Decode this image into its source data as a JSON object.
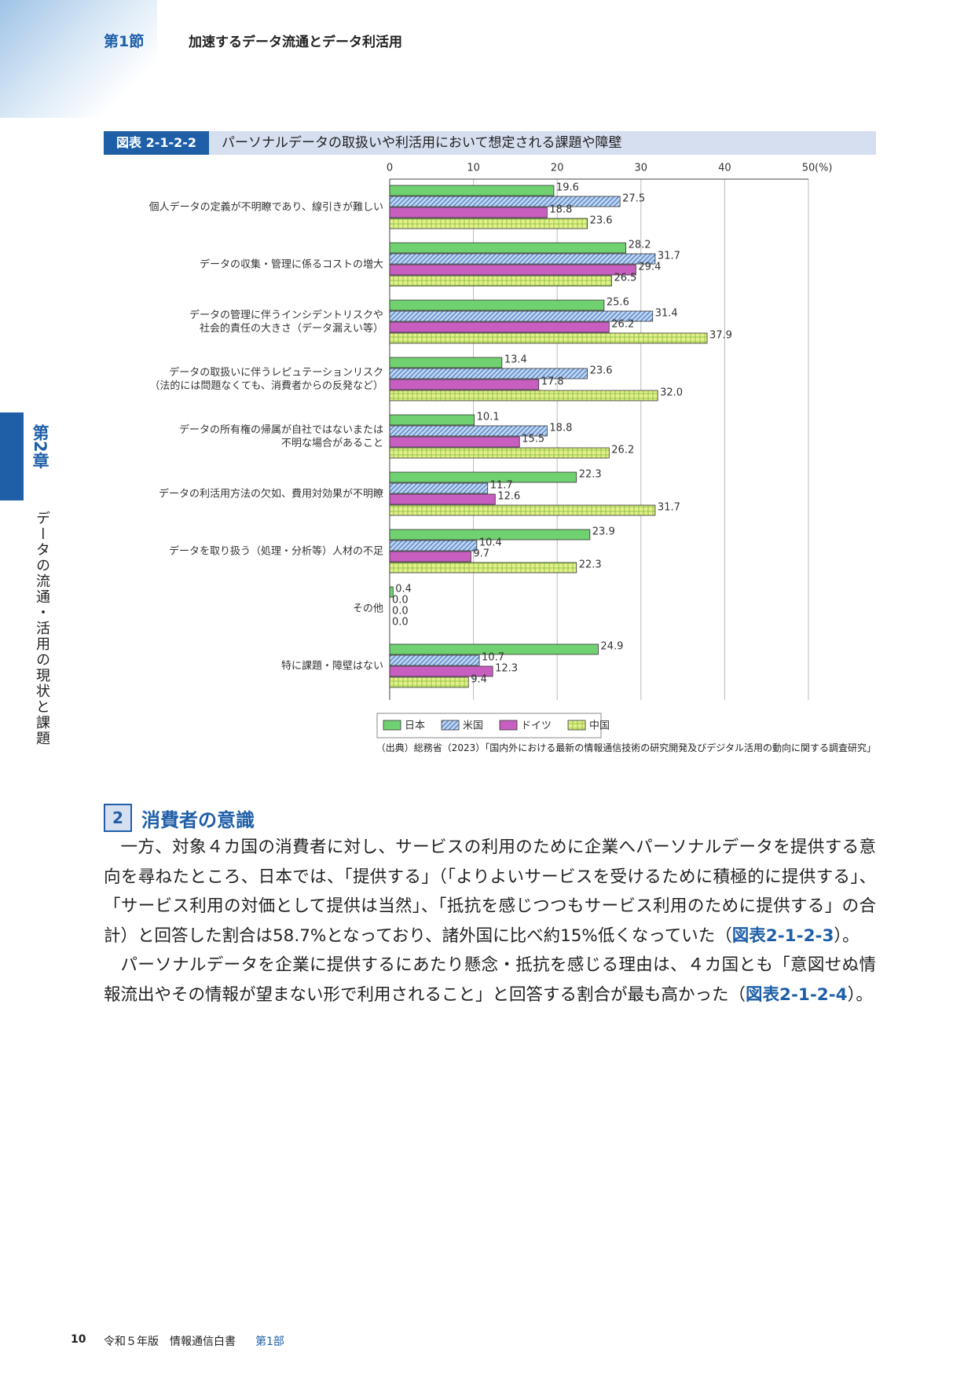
{
  "header": {
    "section": "第1節",
    "title": "加速するデータ流通とデータ利活用"
  },
  "side": {
    "chapter": "第2章",
    "title": "データの流通・活用の現状と課題"
  },
  "figure": {
    "number": "図表 2-1-2-2",
    "title": "パーソナルデータの取扱いや利活用において想定される課題や障壁",
    "source": "（出典）総務省（2023）「国内外における最新の情報通信技術の研究開発及びデジタル活用の動向に関する調査研究」"
  },
  "chart_data": {
    "type": "hbar",
    "unit": "(%)",
    "categories": [
      [
        "個人データの定義が不明瞭であり、線引きが難しい"
      ],
      [
        "データの収集・管理に係るコストの増大"
      ],
      [
        "データの管理に伴うインシデントリスクや",
        "社会的責任の大きさ（データ漏えい等）"
      ],
      [
        "データの取扱いに伴うレピュテーションリスク",
        "（法的には問題なくても、消費者からの反発など）"
      ],
      [
        "データの所有権の帰属が自社ではないまたは",
        "不明な場合があること"
      ],
      [
        "データの利活用方法の欠如、費用対効果が不明瞭"
      ],
      [
        "データを取り扱う（処理・分析等）人材の不足"
      ],
      [
        "その他"
      ],
      [
        "特に課題・障壁はない"
      ]
    ],
    "series": [
      {
        "name": "日本",
        "color": "#6fd16f",
        "pattern": "solid",
        "values": [
          19.6,
          28.2,
          25.6,
          13.4,
          10.1,
          22.3,
          23.9,
          0.4,
          24.9
        ],
        "value_labels": [
          "19.6",
          "28.2",
          "25.6",
          "13.4",
          "10.1",
          "22.3",
          "23.9",
          "0.4",
          "24.9"
        ]
      },
      {
        "name": "米国",
        "color": "#bcd4f2",
        "pattern": "hatch",
        "values": [
          27.5,
          31.7,
          31.4,
          23.6,
          18.8,
          11.7,
          10.4,
          0.0,
          10.7
        ],
        "value_labels": [
          "27.5",
          "31.7",
          "31.4",
          "23.6",
          "18.8",
          "11.7",
          "10.4",
          "0.0",
          "10.7"
        ]
      },
      {
        "name": "ドイツ",
        "color": "#c85fc0",
        "pattern": "solid",
        "values": [
          18.8,
          29.4,
          26.2,
          17.8,
          15.5,
          12.6,
          9.7,
          0.0,
          12.3
        ],
        "value_labels": [
          "18.8",
          "29.4",
          "26.2",
          "17.8",
          "15.5",
          "12.6",
          "9.7",
          "0.0",
          "12.3"
        ]
      },
      {
        "name": "中国",
        "color": "#e3f08a",
        "pattern": "grid",
        "values": [
          23.6,
          26.5,
          37.9,
          32.0,
          26.2,
          31.7,
          22.3,
          0.0,
          9.4
        ],
        "value_labels": [
          "23.6",
          "26.5",
          "37.9",
          "32.0",
          "26.2",
          "31.7",
          "22.3",
          "0.0",
          "9.4"
        ]
      }
    ],
    "xlim": [
      0,
      50
    ],
    "xticks": [
      0,
      10,
      20,
      30,
      40,
      50
    ],
    "grid": true
  },
  "section": {
    "number": "2",
    "title": "消費者の意識"
  },
  "paragraphs": [
    [
      {
        "text": "一方、対象４カ国の消費者に対し、サービスの利用のために企業へパーソナルデータを提供する意向を尋ねたところ、日本では、「提供する」（「よりよいサービスを受けるために積極的に提供する」、「サービス利用の対価として提供は当然」、「抵抗を感じつつもサービス利用のために提供する」の合計）と回答した割合は58.7%となっており、諸外国に比べ約15%低くなっていた（"
      },
      {
        "text": "図表2-1-2-3",
        "ref": true
      },
      {
        "text": "）。"
      }
    ],
    [
      {
        "text": "パーソナルデータを企業に提供するにあたり懸念・抵抗を感じる理由は、４カ国とも「意図せぬ情報流出やその情報が望まない形で利用されること」と回答する割合が最も高かった（"
      },
      {
        "text": "図表2-1-2-4",
        "ref": true
      },
      {
        "text": "）。"
      }
    ]
  ],
  "footer": {
    "page": "10",
    "book": "令和５年版　情報通信白書",
    "part": "第1部"
  }
}
